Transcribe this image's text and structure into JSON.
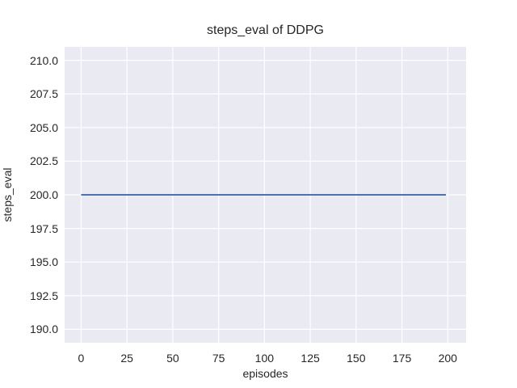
{
  "chart_data": {
    "type": "line",
    "title": "steps_eval of DDPG",
    "xlabel": "episodes",
    "ylabel": "steps_eval",
    "x_ticks": [
      0,
      25,
      50,
      75,
      100,
      125,
      150,
      175,
      200
    ],
    "y_ticks": [
      190.0,
      192.5,
      195.0,
      197.5,
      200.0,
      202.5,
      205.0,
      207.5,
      210.0
    ],
    "y_tick_decimals": 1,
    "xlim": [
      -9,
      210
    ],
    "ylim": [
      189,
      211
    ],
    "grid": true,
    "legend_position": "none",
    "plot_background_color": "#eaeaf2",
    "grid_color": "#ffffff",
    "text_color": "#262626",
    "series": [
      {
        "name": "steps_eval",
        "color": "#4c72b0",
        "line_width": 2,
        "x": [
          0,
          199
        ],
        "y": [
          200,
          200
        ],
        "note": "constant value 200 across all episodes 0-199"
      }
    ]
  }
}
